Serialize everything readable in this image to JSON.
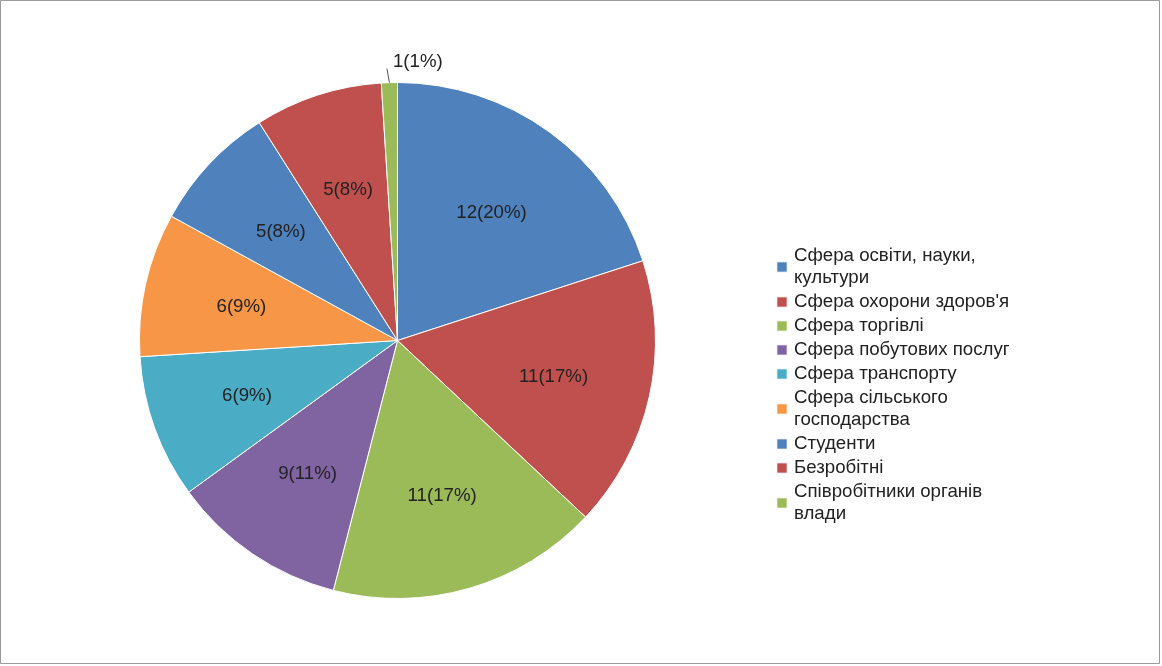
{
  "chart_data": {
    "type": "pie",
    "categories": [
      "Сфера освіти, науки, культури",
      "Сфера охорони здоров'я",
      "Сфера торгівлі",
      "Сфера побутових послуг",
      "Сфера транспорту",
      "Сфера сільського господарства",
      "Студенти",
      "Безробітні",
      "Співробітники органів влади"
    ],
    "values": [
      20,
      17,
      17,
      11,
      9,
      9,
      8,
      8,
      1
    ],
    "value_labels": [
      "12(20%)",
      "11(17%)",
      "11(17%)",
      "9(11%)",
      "6(9%)",
      "6(9%)",
      "5(8%)",
      "5(8%)",
      "1(1%)"
    ],
    "colors": [
      "#4f81bd",
      "#c0504d",
      "#9bbb59",
      "#8064a2",
      "#4bacc6",
      "#f79646",
      "#4f81bd",
      "#c0504d",
      "#9bbb59"
    ],
    "legend": "right"
  }
}
